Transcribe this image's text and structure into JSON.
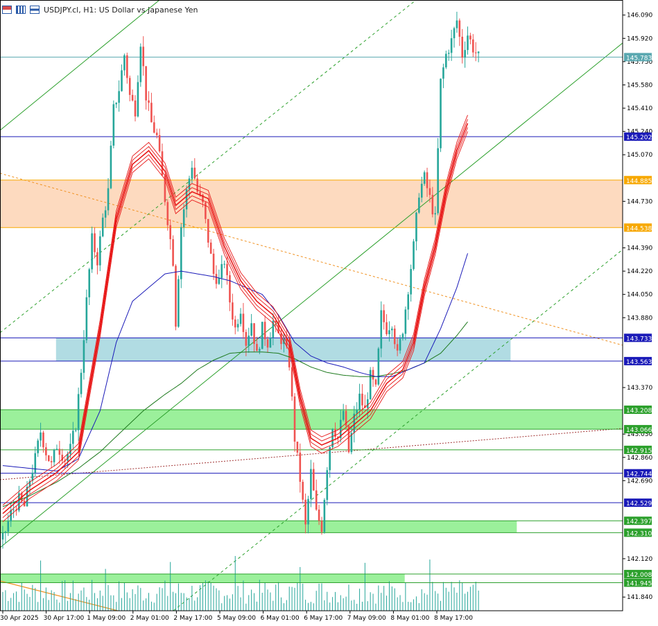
{
  "header": {
    "title": "USDJPY.cl, H1:  US Dollar vs Japanese Yen"
  },
  "colors": {
    "bull": "#26a69a",
    "bear": "#ef5350",
    "ema_ribbon": "#e81818",
    "ma_blue": "#1a1ab8",
    "ma_green": "#1e7a1e",
    "channel": "#2ca02c",
    "resistance_zone": "#fdd6b8",
    "support_zone_blue": "#a8d8e0",
    "support_zone_green": "#90ee90"
  },
  "chart_data": {
    "type": "candlestick",
    "symbol": "USDJPY.cl",
    "timeframe": "H1",
    "ylim": [
      141.74,
      146.2
    ],
    "y_ticks": [
      "146.090",
      "145.920",
      "145.750",
      "145.580",
      "145.410",
      "145.240",
      "145.070",
      "144.730",
      "144.390",
      "144.220",
      "144.050",
      "143.880",
      "143.370",
      "143.030",
      "142.860",
      "142.690",
      "142.120",
      "141.840"
    ],
    "x_ticks": [
      "30 Apr 2025",
      "30 Apr 17:00",
      "1 May 09:00",
      "2 May 01:00",
      "2 May 17:00",
      "5 May 09:00",
      "6 May 01:00",
      "6 May 17:00",
      "7 May 09:00",
      "8 May 01:00",
      "8 May 17:00"
    ],
    "current_price": "145.783",
    "levels": [
      {
        "value": 145.202,
        "label": "145.202",
        "color": "#1a1ab8"
      },
      {
        "value": 144.885,
        "label": "144.885",
        "color": "#f7a800"
      },
      {
        "value": 144.538,
        "label": "144.538",
        "color": "#f7a800"
      },
      {
        "value": 143.733,
        "label": "143.733",
        "color": "#1a1ab8"
      },
      {
        "value": 143.563,
        "label": "143.563",
        "color": "#1a1ab8"
      },
      {
        "value": 143.208,
        "label": "143.208",
        "color": "#2ca02c"
      },
      {
        "value": 143.066,
        "label": "143.066",
        "color": "#2ca02c"
      },
      {
        "value": 142.915,
        "label": "142.915",
        "color": "#2ca02c"
      },
      {
        "value": 142.744,
        "label": "142.744",
        "color": "#1a1ab8"
      },
      {
        "value": 142.529,
        "label": "142.529",
        "color": "#1a1ab8"
      },
      {
        "value": 142.397,
        "label": "142.397",
        "color": "#2ca02c"
      },
      {
        "value": 142.31,
        "label": "142.310",
        "color": "#2ca02c"
      },
      {
        "value": 142.008,
        "label": "142.008",
        "color": "#2ca02c"
      },
      {
        "value": 141.945,
        "label": "141.945",
        "color": "#2ca02c"
      }
    ],
    "zones": [
      {
        "from": 144.538,
        "to": 144.885,
        "color": "#fdd6b8",
        "x_start": 0,
        "x_end": 1
      },
      {
        "from": 143.563,
        "to": 143.733,
        "color": "#a8d8e0",
        "x_start": 0.09,
        "x_end": 0.82
      },
      {
        "from": 143.066,
        "to": 143.208,
        "color": "#90ee90",
        "x_start": 0,
        "x_end": 1
      },
      {
        "from": 142.31,
        "to": 142.397,
        "color": "#90ee90",
        "x_start": 0,
        "x_end": 0.83
      },
      {
        "from": 141.945,
        "to": 142.008,
        "color": "#90ee90",
        "x_start": 0,
        "x_end": 0.65
      }
    ],
    "path_points": [
      [
        0,
        142.26
      ],
      [
        3,
        142.45
      ],
      [
        6,
        142.55
      ],
      [
        8,
        142.5
      ],
      [
        10,
        142.7
      ],
      [
        12,
        142.85
      ],
      [
        14,
        143.05
      ],
      [
        16,
        142.9
      ],
      [
        18,
        142.8
      ],
      [
        20,
        142.95
      ],
      [
        23,
        142.85
      ],
      [
        25,
        142.92
      ],
      [
        27,
        143.1
      ],
      [
        29,
        143.5
      ],
      [
        31,
        144.0
      ],
      [
        33,
        144.45
      ],
      [
        35,
        144.3
      ],
      [
        37,
        144.6
      ],
      [
        39,
        144.8
      ],
      [
        41,
        145.4
      ],
      [
        43,
        145.55
      ],
      [
        45,
        145.8
      ],
      [
        47,
        145.5
      ],
      [
        49,
        145.4
      ],
      [
        51,
        145.9
      ],
      [
        53,
        145.5
      ],
      [
        55,
        145.3
      ],
      [
        57,
        145.2
      ],
      [
        59,
        144.9
      ],
      [
        61,
        144.6
      ],
      [
        63,
        144.3
      ],
      [
        64,
        143.85
      ],
      [
        66,
        144.55
      ],
      [
        68,
        144.8
      ],
      [
        70,
        145.0
      ],
      [
        72,
        144.8
      ],
      [
        74,
        144.7
      ],
      [
        76,
        144.45
      ],
      [
        78,
        144.2
      ],
      [
        80,
        144.15
      ],
      [
        82,
        144.3
      ],
      [
        84,
        144.0
      ],
      [
        86,
        143.8
      ],
      [
        88,
        143.95
      ],
      [
        90,
        143.7
      ],
      [
        92,
        143.85
      ],
      [
        94,
        143.6
      ],
      [
        96,
        143.8
      ],
      [
        98,
        143.7
      ],
      [
        100,
        143.85
      ],
      [
        102,
        143.75
      ],
      [
        104,
        143.7
      ],
      [
        106,
        143.55
      ],
      [
        108,
        143.0
      ],
      [
        110,
        142.7
      ],
      [
        112,
        142.35
      ],
      [
        114,
        142.75
      ],
      [
        116,
        142.45
      ],
      [
        118,
        142.35
      ],
      [
        120,
        142.8
      ],
      [
        122,
        143.1
      ],
      [
        124,
        143.0
      ],
      [
        126,
        143.2
      ],
      [
        128,
        142.9
      ],
      [
        130,
        143.15
      ],
      [
        132,
        143.3
      ],
      [
        134,
        143.2
      ],
      [
        136,
        143.45
      ],
      [
        138,
        143.35
      ],
      [
        140,
        143.9
      ],
      [
        142,
        143.8
      ],
      [
        144,
        143.85
      ],
      [
        146,
        143.6
      ],
      [
        148,
        143.8
      ],
      [
        150,
        144.1
      ],
      [
        152,
        144.4
      ],
      [
        154,
        144.8
      ],
      [
        156,
        144.9
      ],
      [
        158,
        144.75
      ],
      [
        160,
        144.6
      ],
      [
        162,
        145.6
      ],
      [
        164,
        145.8
      ],
      [
        166,
        145.9
      ],
      [
        168,
        146.05
      ],
      [
        170,
        145.8
      ],
      [
        172,
        145.95
      ],
      [
        174,
        145.85
      ],
      [
        176,
        145.78
      ]
    ],
    "ema_ribbon": [
      [
        0,
        142.45
      ],
      [
        10,
        142.62
      ],
      [
        20,
        142.75
      ],
      [
        28,
        142.9
      ],
      [
        36,
        143.8
      ],
      [
        42,
        144.6
      ],
      [
        48,
        145.0
      ],
      [
        54,
        145.1
      ],
      [
        60,
        144.95
      ],
      [
        64,
        144.7
      ],
      [
        70,
        144.8
      ],
      [
        76,
        144.75
      ],
      [
        82,
        144.4
      ],
      [
        88,
        144.15
      ],
      [
        94,
        144.0
      ],
      [
        100,
        143.9
      ],
      [
        106,
        143.7
      ],
      [
        110,
        143.3
      ],
      [
        114,
        143.0
      ],
      [
        118,
        142.95
      ],
      [
        124,
        143.0
      ],
      [
        130,
        143.1
      ],
      [
        136,
        143.2
      ],
      [
        142,
        143.4
      ],
      [
        148,
        143.5
      ],
      [
        152,
        143.7
      ],
      [
        156,
        144.1
      ],
      [
        160,
        144.4
      ],
      [
        164,
        144.8
      ],
      [
        168,
        145.1
      ],
      [
        172,
        145.3
      ]
    ],
    "ma_blue": [
      [
        0,
        142.8
      ],
      [
        10,
        142.78
      ],
      [
        20,
        142.76
      ],
      [
        28,
        142.85
      ],
      [
        36,
        143.2
      ],
      [
        42,
        143.7
      ],
      [
        48,
        144.0
      ],
      [
        54,
        144.1
      ],
      [
        60,
        144.2
      ],
      [
        66,
        144.22
      ],
      [
        72,
        144.2
      ],
      [
        78,
        144.18
      ],
      [
        84,
        144.15
      ],
      [
        90,
        144.1
      ],
      [
        96,
        144.05
      ],
      [
        102,
        143.9
      ],
      [
        108,
        143.7
      ],
      [
        114,
        143.6
      ],
      [
        120,
        143.55
      ],
      [
        126,
        143.52
      ],
      [
        132,
        143.48
      ],
      [
        138,
        143.45
      ],
      [
        144,
        143.45
      ],
      [
        150,
        143.5
      ],
      [
        156,
        143.55
      ],
      [
        162,
        143.8
      ],
      [
        168,
        144.1
      ],
      [
        172,
        144.35
      ]
    ],
    "ma_green": [
      [
        0,
        142.5
      ],
      [
        10,
        142.58
      ],
      [
        20,
        142.68
      ],
      [
        28,
        142.78
      ],
      [
        36,
        142.9
      ],
      [
        44,
        143.05
      ],
      [
        52,
        143.2
      ],
      [
        60,
        143.32
      ],
      [
        66,
        143.4
      ],
      [
        72,
        143.5
      ],
      [
        78,
        143.57
      ],
      [
        84,
        143.62
      ],
      [
        90,
        143.63
      ],
      [
        96,
        143.63
      ],
      [
        102,
        143.62
      ],
      [
        108,
        143.58
      ],
      [
        114,
        143.52
      ],
      [
        120,
        143.48
      ],
      [
        126,
        143.46
      ],
      [
        132,
        143.45
      ],
      [
        138,
        143.45
      ],
      [
        144,
        143.47
      ],
      [
        150,
        143.5
      ],
      [
        156,
        143.55
      ],
      [
        162,
        143.62
      ],
      [
        168,
        143.75
      ],
      [
        172,
        143.85
      ]
    ],
    "bars_total": 177
  }
}
